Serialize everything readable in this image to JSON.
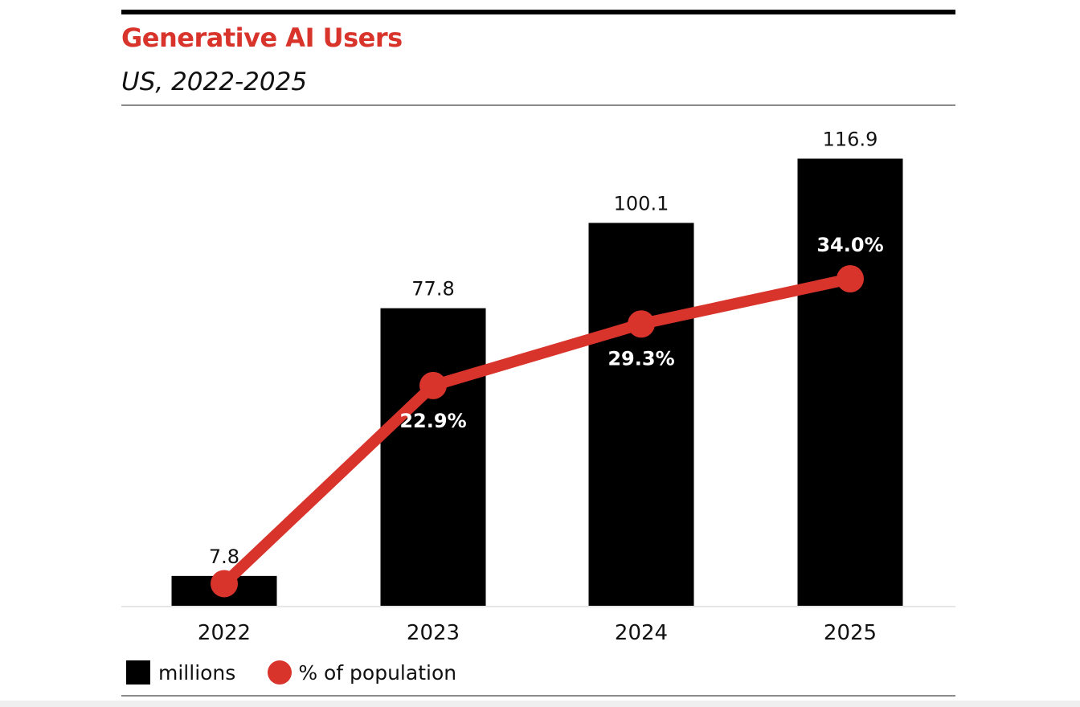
{
  "header": {
    "title": "Generative AI Users",
    "subtitle": "US, 2022-2025"
  },
  "colors": {
    "accent": "#d9342b",
    "bar": "#000000",
    "text": "#111111"
  },
  "chart_data": {
    "type": "bar",
    "title": "Generative AI Users",
    "subtitle": "US, 2022-2025",
    "categories": [
      "2022",
      "2023",
      "2024",
      "2025"
    ],
    "series": [
      {
        "name": "millions",
        "kind": "bar",
        "values": [
          7.8,
          77.8,
          100.1,
          116.9
        ],
        "labels": [
          "7.8",
          "77.8",
          "100.1",
          "116.9"
        ]
      },
      {
        "name": "% of population",
        "kind": "line",
        "values": [
          2.3,
          22.9,
          29.3,
          34.0
        ],
        "labels": [
          "",
          "22.9%",
          "29.3%",
          "34.0%"
        ]
      }
    ],
    "xlabel": "",
    "ylabel": "",
    "ylim": [
      0,
      117
    ],
    "y2lim": [
      0,
      42
    ],
    "grid": false,
    "legend": "bottom-left"
  }
}
